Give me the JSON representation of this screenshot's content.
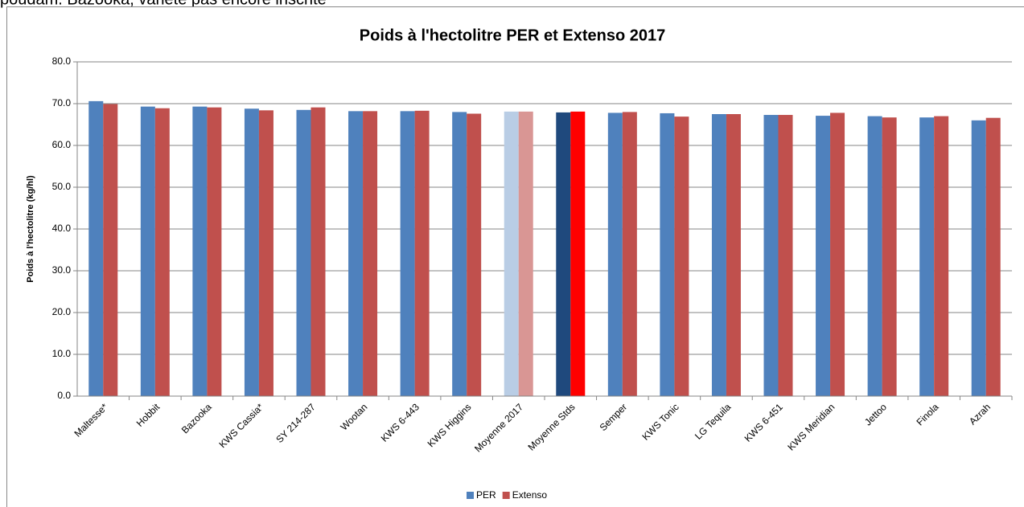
{
  "header_text": "poudam. Bazooka, variété pas encore inscrite",
  "chart_data": {
    "type": "bar",
    "title": "Poids à l'hectolitre PER et Extenso 2017",
    "y_label": "Poids à l'hectolitre (kg/hl)",
    "categories": [
      "Maltesse*",
      "Hobbit",
      "Bazooka",
      "KWS Cassia*",
      "SY 214-287",
      "Wootan",
      "KWS 6-443",
      "KWS Higgins",
      "Moyenne 2017",
      "Moyenne Stds",
      "Semper",
      "KWS Tonic",
      "LG Tequila",
      "KWS 6-451",
      "KWS Meridian",
      "Jettoo",
      "Finola",
      "Azrah"
    ],
    "series": [
      {
        "name": "PER",
        "color": "#4f81bd",
        "values": [
          70.6,
          69.3,
          69.3,
          68.8,
          68.5,
          68.2,
          68.2,
          68.0,
          68.1,
          67.9,
          67.8,
          67.7,
          67.5,
          67.3,
          67.1,
          67.0,
          66.7,
          66.0
        ],
        "colors": [
          "#4f81bd",
          "#4f81bd",
          "#4f81bd",
          "#4f81bd",
          "#4f81bd",
          "#4f81bd",
          "#4f81bd",
          "#4f81bd",
          "#b9cde5",
          "#1f497d",
          "#4f81bd",
          "#4f81bd",
          "#4f81bd",
          "#4f81bd",
          "#4f81bd",
          "#4f81bd",
          "#4f81bd",
          "#4f81bd"
        ]
      },
      {
        "name": "Extenso",
        "color": "#c0504d",
        "values": [
          69.9,
          68.9,
          69.1,
          68.4,
          69.1,
          68.2,
          68.3,
          67.6,
          68.1,
          68.1,
          68.0,
          66.9,
          67.5,
          67.3,
          67.8,
          66.7,
          67.0,
          66.6
        ],
        "colors": [
          "#c0504d",
          "#c0504d",
          "#c0504d",
          "#c0504d",
          "#c0504d",
          "#c0504d",
          "#c0504d",
          "#c0504d",
          "#d99694",
          "#ff0000",
          "#c0504d",
          "#c0504d",
          "#c0504d",
          "#c0504d",
          "#c0504d",
          "#c0504d",
          "#c0504d",
          "#c0504d"
        ]
      }
    ],
    "ylim": [
      0,
      80
    ],
    "yticks": [
      {
        "value": 0,
        "label": "0.0"
      },
      {
        "value": 10,
        "label": "10.0"
      },
      {
        "value": 20,
        "label": "20.0"
      },
      {
        "value": 30,
        "label": "30.0"
      },
      {
        "value": 40,
        "label": "40.0"
      },
      {
        "value": 50,
        "label": "50.0"
      },
      {
        "value": 60,
        "label": "60.0"
      },
      {
        "value": 70,
        "label": "70.0"
      },
      {
        "value": 80,
        "label": "80.0"
      }
    ],
    "grid": true,
    "legend": "bottom"
  }
}
